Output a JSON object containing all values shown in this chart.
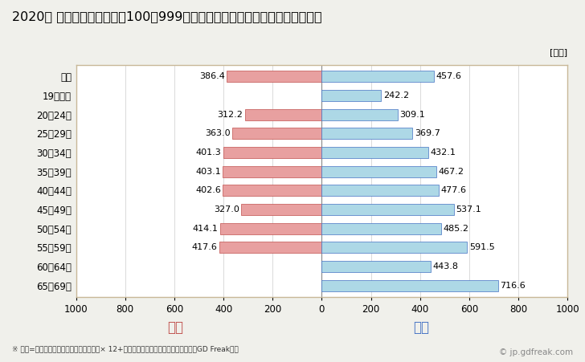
{
  "title": "2020年 民間企業（従業者数100〜999人）フルタイム労働者の男女別平均年収",
  "ylabel_unit": "[万円]",
  "footnote": "※ 年収=「きまって支給する現金給与額」× 12+「年間賞与その他特別給与額」としてGD Freak推計",
  "watermark": "© jp.gdfreak.com",
  "categories": [
    "全体",
    "19歳以下",
    "20〜24歳",
    "25〜29歳",
    "30〜34歳",
    "35〜39歳",
    "40〜44歳",
    "45〜49歳",
    "50〜54歳",
    "55〜59歳",
    "60〜64歳",
    "65〜69歳"
  ],
  "female_values": [
    386.4,
    0,
    312.2,
    363.0,
    401.3,
    403.1,
    402.6,
    327.0,
    414.1,
    417.6,
    0,
    0
  ],
  "male_values": [
    457.6,
    242.2,
    309.1,
    369.7,
    432.1,
    467.2,
    477.6,
    537.1,
    485.2,
    591.5,
    443.8,
    716.6
  ],
  "female_color": "#e8a0a0",
  "male_color": "#add8e6",
  "female_label": "女性",
  "male_label": "男性",
  "female_label_color": "#c0504d",
  "male_label_color": "#4472c4",
  "xlim": [
    -1000,
    1000
  ],
  "xticks": [
    -1000,
    -800,
    -600,
    -400,
    -200,
    0,
    200,
    400,
    600,
    800,
    1000
  ],
  "xticklabels": [
    "1000",
    "800",
    "600",
    "400",
    "200",
    "0",
    "200",
    "400",
    "600",
    "800",
    "1000"
  ],
  "background_color": "#f0f0eb",
  "plot_background_color": "#ffffff",
  "title_fontsize": 11.5,
  "tick_fontsize": 8.5,
  "value_fontsize": 8,
  "bar_height": 0.6,
  "grid_color": "#cccccc",
  "border_color": "#c8b898"
}
